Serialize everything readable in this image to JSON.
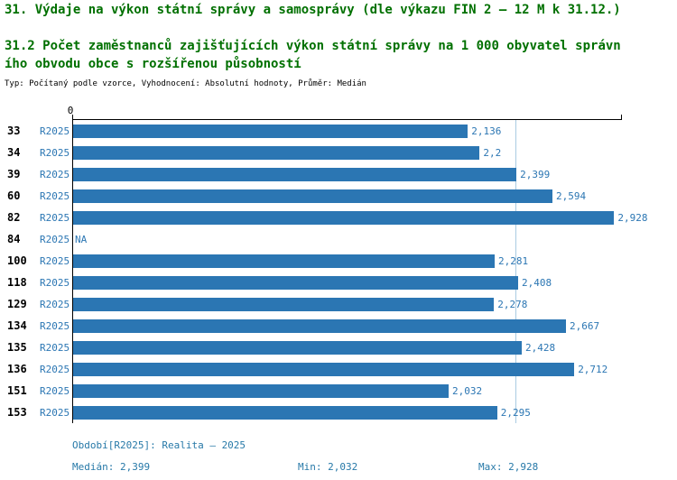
{
  "header": {
    "title1": "31. Výdaje na výkon státní správy a samosprávy (dle výkazu FIN 2 – 12 M k 31.12.)",
    "title2_lines": [
      "31.2 Počet zaměstnanců zajišťujících výkon státní správy na 1 000 obyvatel správn",
      "ího obvodu obce s rozšířenou působností"
    ],
    "meta": "Typ: Počítaný podle vzorce, Vyhodnocení: Absolutní hodnoty, Průměr: Medián"
  },
  "chart_data": {
    "type": "bar",
    "orientation": "horizontal",
    "title": "31.2 Počet zaměstnanců zajišťujících výkon státní správy na 1 000 obyvatel správního obvodu obce s rozšířenou působností",
    "axis_origin_label": "0",
    "period": "R2025",
    "categories": [
      "33",
      "34",
      "39",
      "60",
      "82",
      "84",
      "100",
      "118",
      "129",
      "134",
      "135",
      "136",
      "151",
      "153"
    ],
    "values": [
      2.136,
      2.2,
      2.399,
      2.594,
      2.928,
      null,
      2.281,
      2.408,
      2.278,
      2.667,
      2.428,
      2.712,
      2.032,
      2.295
    ],
    "value_labels": [
      "2,136",
      "2,2",
      "2,399",
      "2,594",
      "2,928",
      "NA",
      "2,281",
      "2,408",
      "2,278",
      "2,667",
      "2,428",
      "2,712",
      "2,032",
      "2,295"
    ],
    "xlim": [
      0,
      2.97
    ],
    "grid": false,
    "legend": false,
    "median_value": 2.399,
    "min_value": 2.032,
    "max_value": 2.928,
    "bar_color": "#2b76b3",
    "median_line_color": "#a9cbe2"
  },
  "footer": {
    "period_info": "Období[R2025]: Realita – 2025",
    "median": "Medián: 2,399",
    "min": "Min: 2,032",
    "max": "Max: 2,928"
  },
  "colors": {
    "title_green": "#007000",
    "label_blue": "#2b76b3",
    "footer_teal": "#2779a8",
    "axis_black": "#000000",
    "median_line": "#a9cbe2"
  }
}
